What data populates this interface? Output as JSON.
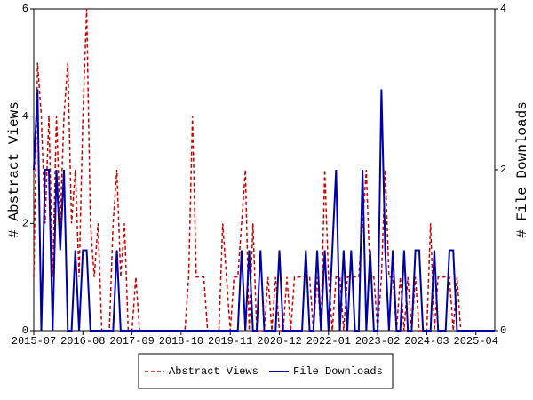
{
  "chart_data": {
    "type": "line",
    "x": [
      "2015-07",
      "2015-08",
      "2015-09",
      "2015-10",
      "2015-11",
      "2015-12",
      "2016-01",
      "2016-02",
      "2016-03",
      "2016-04",
      "2016-05",
      "2016-06",
      "2016-07",
      "2016-08",
      "2016-09",
      "2016-10",
      "2016-11",
      "2016-12",
      "2017-01",
      "2017-02",
      "2017-03",
      "2017-04",
      "2017-05",
      "2017-06",
      "2017-07",
      "2017-08",
      "2017-09",
      "2017-10",
      "2017-11",
      "2017-12",
      "2018-01",
      "2018-02",
      "2018-03",
      "2018-04",
      "2018-05",
      "2018-06",
      "2018-07",
      "2018-08",
      "2018-09",
      "2018-10",
      "2018-11",
      "2018-12",
      "2019-01",
      "2019-02",
      "2019-03",
      "2019-04",
      "2019-05",
      "2019-06",
      "2019-07",
      "2019-08",
      "2019-09",
      "2019-10",
      "2019-11",
      "2019-12",
      "2020-01",
      "2020-02",
      "2020-03",
      "2020-04",
      "2020-05",
      "2020-06",
      "2020-07",
      "2020-08",
      "2020-09",
      "2020-10",
      "2020-11",
      "2020-12",
      "2021-01",
      "2021-02",
      "2021-03",
      "2021-04",
      "2021-05",
      "2021-06",
      "2021-07",
      "2021-08",
      "2021-09",
      "2021-10",
      "2021-11",
      "2021-12",
      "2022-01",
      "2022-02",
      "2022-03",
      "2022-04",
      "2022-05",
      "2022-06",
      "2022-07",
      "2022-08",
      "2022-09",
      "2022-10",
      "2022-11",
      "2022-12",
      "2023-01",
      "2023-02",
      "2023-03",
      "2023-04",
      "2023-05",
      "2023-06",
      "2023-07",
      "2023-08",
      "2023-09",
      "2023-10",
      "2023-11",
      "2023-12",
      "2024-01",
      "2024-02",
      "2024-03",
      "2024-04",
      "2024-05",
      "2024-06",
      "2024-07",
      "2024-08",
      "2024-09",
      "2024-10",
      "2024-11",
      "2024-12",
      "2025-01",
      "2025-02",
      "2025-03",
      "2025-04",
      "2025-05",
      "2025-06",
      "2025-07",
      "2025-08",
      "2025-09"
    ],
    "xticks": [
      "2015-07",
      "2016-08",
      "2017-09",
      "2018-10",
      "2019-11",
      "2020-12",
      "2022-01",
      "2023-02",
      "2024-03",
      "2025-04"
    ],
    "series": [
      {
        "name": "Abstract Views",
        "color": "#cc0000",
        "dash": true,
        "values": [
          1,
          5,
          4,
          2,
          4,
          1,
          4,
          2,
          4,
          5,
          2,
          3,
          1,
          4,
          6,
          2,
          1,
          2,
          0,
          0,
          0,
          2,
          3,
          1,
          2,
          0,
          0,
          1,
          0,
          0,
          0,
          0,
          0,
          0,
          0,
          0,
          0,
          0,
          0,
          0,
          0,
          1,
          4,
          1,
          1,
          1,
          0,
          0,
          0,
          0,
          2,
          1,
          0,
          1,
          1,
          2,
          3,
          0,
          2,
          0,
          0,
          0,
          1,
          0,
          1,
          0,
          0,
          1,
          0,
          1,
          1,
          1,
          1,
          1,
          0,
          1,
          0,
          3,
          1,
          0,
          1,
          1,
          0,
          1,
          1,
          1,
          1,
          2,
          3,
          1,
          1,
          0,
          1,
          3,
          1,
          1,
          0,
          1,
          0,
          1,
          0,
          1,
          0,
          0,
          0,
          2,
          0,
          1,
          1,
          1,
          1,
          0,
          1,
          0,
          0,
          0,
          0,
          0,
          0,
          0,
          0,
          0,
          0
        ]
      },
      {
        "name": "File Downloads",
        "color": "#0000aa",
        "axis": "y2",
        "values": [
          2,
          3,
          0,
          2,
          2,
          0,
          2,
          1,
          2,
          0,
          0,
          1,
          0,
          1,
          1,
          0,
          0,
          0,
          0,
          0,
          0,
          0,
          1,
          0,
          0,
          0,
          0,
          0,
          0,
          0,
          0,
          0,
          0,
          0,
          0,
          0,
          0,
          0,
          0,
          0,
          0,
          0,
          0,
          0,
          0,
          0,
          0,
          0,
          0,
          0,
          0,
          0,
          0,
          0,
          0,
          1,
          0,
          1,
          0,
          0,
          1,
          0,
          0,
          0,
          0,
          1,
          0,
          0,
          0,
          0,
          0,
          0,
          1,
          0,
          0,
          1,
          0,
          1,
          0,
          1,
          2,
          0,
          1,
          0,
          1,
          0,
          0,
          2,
          0,
          1,
          0,
          0,
          3,
          1,
          0,
          1,
          0,
          0,
          1,
          0,
          0,
          1,
          1,
          0,
          0,
          0,
          1,
          0,
          0,
          0,
          1,
          1,
          0,
          0,
          0,
          0,
          0,
          0,
          0,
          0,
          0,
          0,
          0
        ]
      }
    ],
    "ylabel": "# Abstract Views",
    "y2label": "# File Downloads",
    "ylim": [
      0,
      6
    ],
    "yticks": [
      0,
      2,
      4,
      6
    ],
    "y2lim": [
      0,
      4
    ],
    "y2ticks": [
      0,
      2,
      4
    ],
    "legend": "bottom"
  }
}
